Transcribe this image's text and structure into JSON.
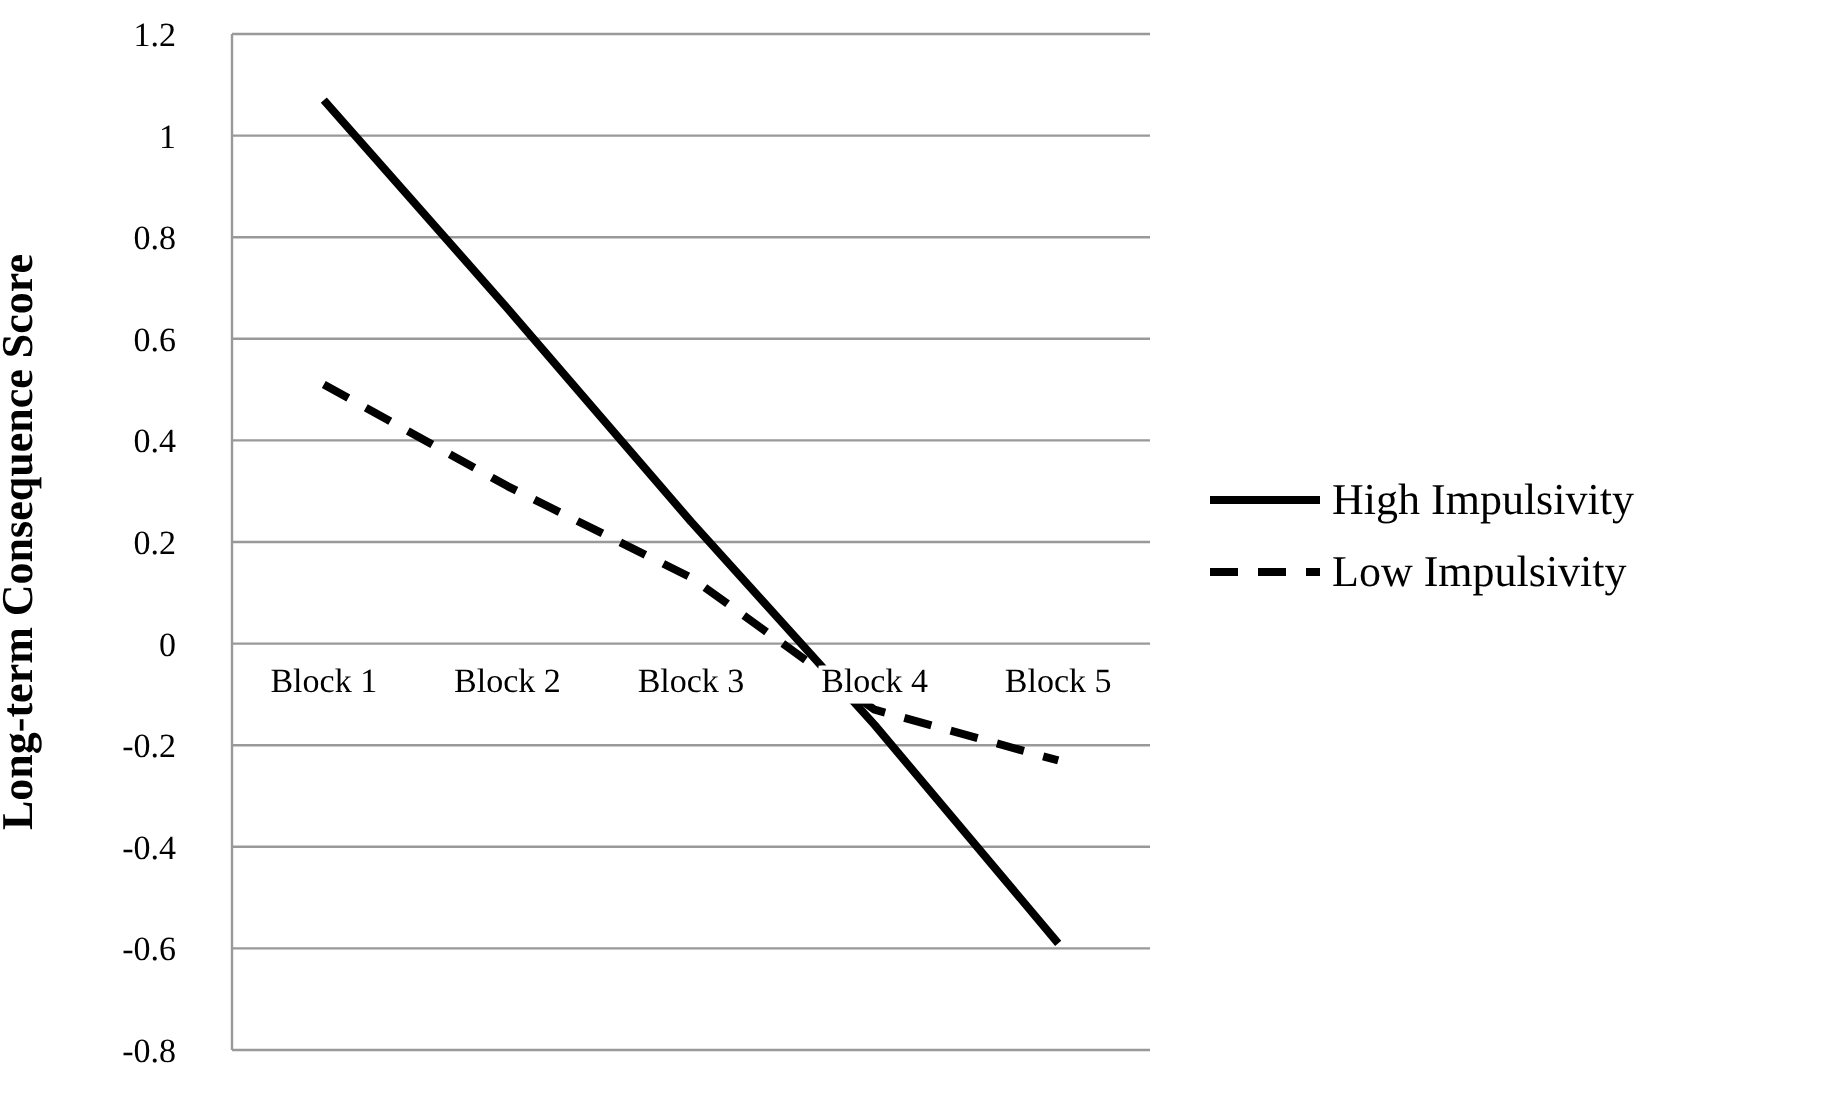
{
  "chart_data": {
    "type": "line",
    "ylabel": "Long-term Consequence Score",
    "categories": [
      "Block 1",
      "Block 2",
      "Block 3",
      "Block 4",
      "Block 5"
    ],
    "series": [
      {
        "name": "High Impulsivity",
        "color": "#000000",
        "line_style": "solid",
        "values": [
          1.07,
          0.66,
          0.24,
          -0.16,
          -0.59
        ]
      },
      {
        "name": "Low Impulsivity",
        "color": "#000000",
        "line_style": "dashed",
        "values": [
          0.51,
          0.31,
          0.13,
          -0.13,
          -0.23
        ]
      }
    ],
    "ylim": [
      -0.8,
      1.2
    ],
    "yticks": [
      -0.8,
      -0.6,
      -0.4,
      -0.2,
      0,
      0.2,
      0.4,
      0.6,
      0.8,
      1,
      1.2
    ],
    "grid": "y",
    "legend": "right",
    "marker": "none"
  }
}
